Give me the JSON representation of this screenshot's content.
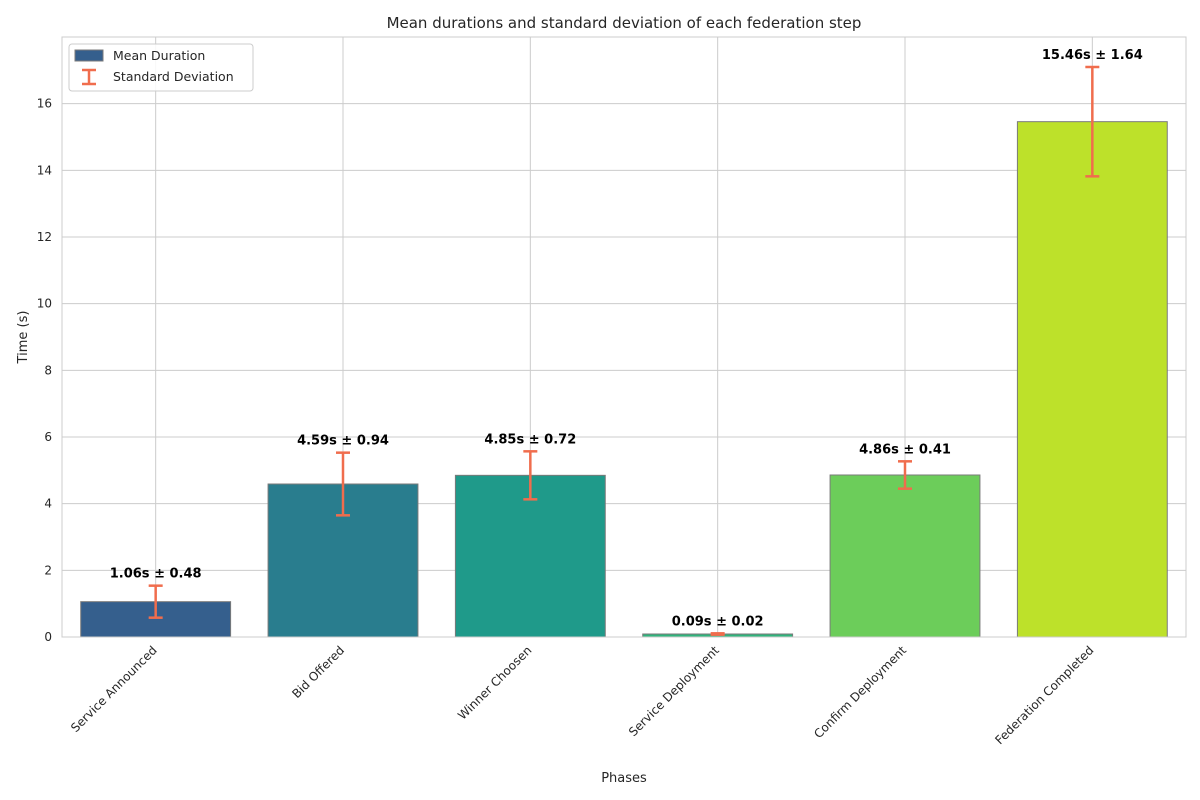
{
  "chart_data": {
    "type": "bar",
    "title": "Mean durations and standard deviation of each federation step",
    "xlabel": "Phases",
    "ylabel": "Time (s)",
    "categories": [
      "Service Announced",
      "Bid Offered",
      "Winner Choosen",
      "Service Deployment",
      "Confirm Deployment",
      "Federation Completed"
    ],
    "series": [
      {
        "name": "Mean Duration",
        "values": [
          1.06,
          4.59,
          4.85,
          0.09,
          4.86,
          15.46
        ]
      },
      {
        "name": "Standard Deviation",
        "values": [
          0.48,
          0.94,
          0.72,
          0.02,
          0.41,
          1.64
        ]
      }
    ],
    "data_labels": [
      "1.06s ± 0.48",
      "4.59s ± 0.94",
      "4.85s ± 0.72",
      "0.09s ± 0.02",
      "4.86s ± 0.41",
      "15.46s ± 1.64"
    ],
    "bar_colors": [
      "#355f8d",
      "#297d8e",
      "#1f9a8a",
      "#2fb47c",
      "#6ccd5a",
      "#bde12a"
    ],
    "error_color": "#f06d4d",
    "ylim": [
      0,
      18
    ],
    "yticks": [
      0,
      2,
      4,
      6,
      8,
      10,
      12,
      14,
      16
    ],
    "grid": true,
    "legend_position": "top-left"
  }
}
